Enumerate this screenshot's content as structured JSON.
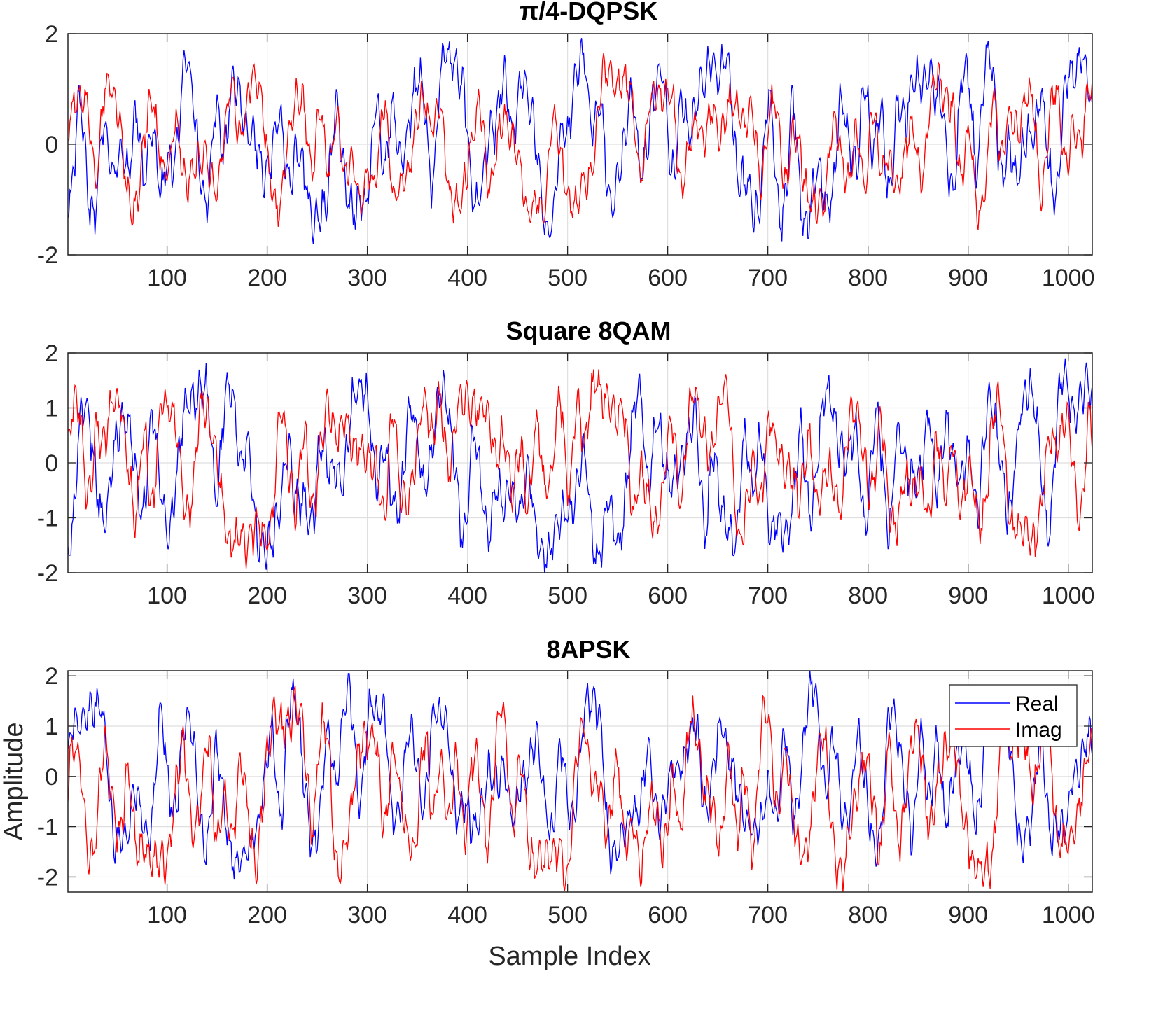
{
  "chart_data": [
    {
      "type": "line",
      "title": "π/4-DQPSK",
      "xlabel": "",
      "ylabel": "",
      "xlim": [
        1,
        1024
      ],
      "ylim": [
        -2,
        2
      ],
      "xticks": [
        "100",
        "200",
        "300",
        "400",
        "500",
        "600",
        "700",
        "800",
        "900",
        "1000"
      ],
      "yticks": [
        "2",
        "0",
        "-2"
      ],
      "grid": true,
      "series": [
        {
          "name": "Real",
          "color": "#0000ff",
          "seed": 11,
          "amplitude": 0.78,
          "min": -1.8,
          "max": 1.92
        },
        {
          "name": "Imag",
          "color": "#ff0000",
          "seed": 29,
          "amplitude": 0.78,
          "min": -1.55,
          "max": 1.65
        }
      ]
    },
    {
      "type": "line",
      "title": "Square 8QAM",
      "xlabel": "",
      "ylabel": "",
      "xlim": [
        1,
        1024
      ],
      "ylim": [
        -2,
        2
      ],
      "xticks": [
        "100",
        "200",
        "300",
        "400",
        "500",
        "600",
        "700",
        "800",
        "900",
        "1000"
      ],
      "yticks": [
        "2",
        "1",
        "0",
        "-1",
        "-2"
      ],
      "grid": true,
      "series": [
        {
          "name": "Real",
          "color": "#0000ff",
          "seed": 47,
          "amplitude": 0.8,
          "min": -2.0,
          "max": 1.9
        },
        {
          "name": "Imag",
          "color": "#ff0000",
          "seed": 83,
          "amplitude": 0.8,
          "min": -1.92,
          "max": 1.7
        }
      ]
    },
    {
      "type": "line",
      "title": "8APSK",
      "xlabel": "Sample Index",
      "ylabel": "Amplitude",
      "xlim": [
        1,
        1024
      ],
      "ylim": [
        -2.3,
        2.1
      ],
      "xticks": [
        "100",
        "200",
        "300",
        "400",
        "500",
        "600",
        "700",
        "800",
        "900",
        "1000"
      ],
      "yticks": [
        "2",
        "1",
        "0",
        "-1",
        "-2"
      ],
      "grid": true,
      "legend": {
        "location": "top-right",
        "entries": [
          "Real",
          "Imag"
        ]
      },
      "series": [
        {
          "name": "Real",
          "color": "#0000ff",
          "seed": 101,
          "amplitude": 0.8,
          "min": -2.05,
          "max": 2.1
        },
        {
          "name": "Imag",
          "color": "#ff0000",
          "seed": 137,
          "amplitude": 0.8,
          "min": -2.3,
          "max": 1.8
        }
      ]
    }
  ]
}
